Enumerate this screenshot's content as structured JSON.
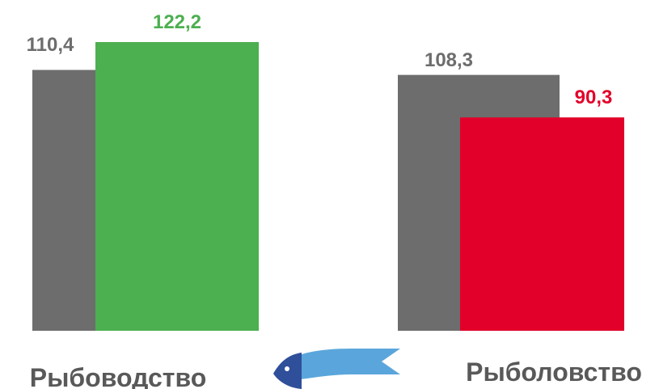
{
  "chart_data": {
    "type": "bar",
    "categories": [
      "Рыбоводство",
      "Рыболовство"
    ],
    "series": [
      {
        "values": [
          110.4,
          108.3
        ],
        "labels": [
          "110,4",
          "108,3"
        ],
        "color": "#6d6d6d",
        "label_color": "#6d6d6d"
      },
      {
        "values": [
          122.2,
          90.3
        ],
        "labels": [
          "122,2",
          "90,3"
        ],
        "colors": [
          "#4caf50",
          "#e2002a"
        ],
        "label_colors": [
          "#4caf50",
          "#e2002a"
        ]
      }
    ],
    "ylim": [
      0,
      122.2
    ],
    "grid": false,
    "legend": "none"
  },
  "decor": {
    "fish_icon": "fish-icon",
    "fish_body_color": "#5aa6dc",
    "fish_head_color": "#2f4f9a"
  }
}
